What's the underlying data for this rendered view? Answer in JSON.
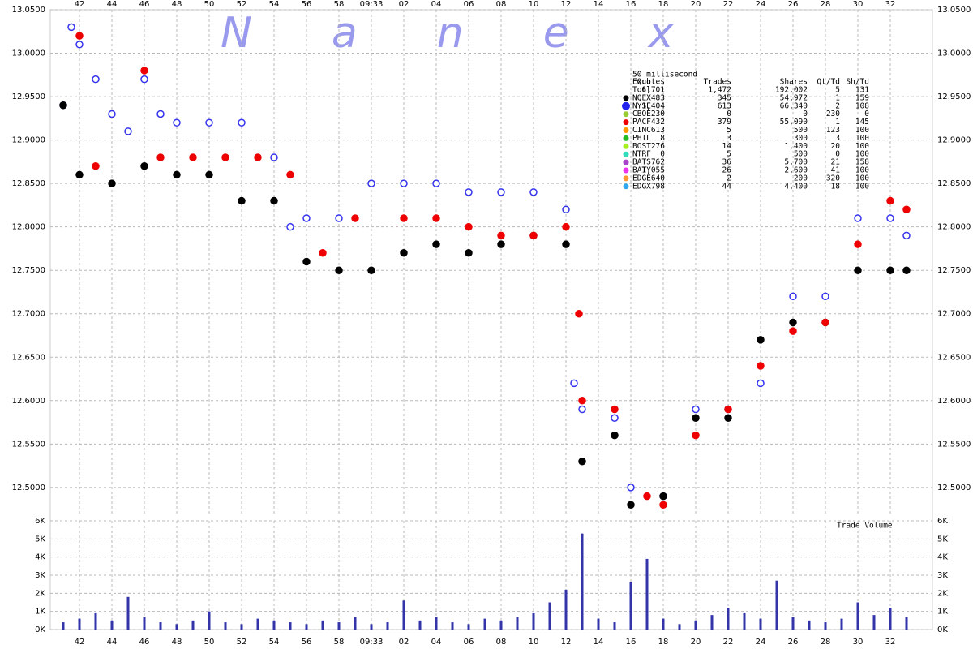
{
  "chart_data": [
    {
      "type": "scatter",
      "title": "Nanex",
      "xlim": [
        40.2,
        94.6
      ],
      "xticks": [
        42,
        44,
        46,
        48,
        50,
        52,
        54,
        56,
        58,
        {
          "value": 60,
          "label": "09:33"
        },
        {
          "value": 62,
          "label": "02"
        },
        {
          "value": 64,
          "label": "04"
        },
        {
          "value": 66,
          "label": "06"
        },
        {
          "value": 68,
          "label": "08"
        },
        {
          "value": 70,
          "label": "10"
        },
        {
          "value": 72,
          "label": "12"
        },
        {
          "value": 74,
          "label": "14"
        },
        {
          "value": 76,
          "label": "16"
        },
        {
          "value": 78,
          "label": "18"
        },
        {
          "value": 80,
          "label": "20"
        },
        {
          "value": 82,
          "label": "22"
        },
        {
          "value": 84,
          "label": "24"
        },
        {
          "value": 86,
          "label": "26"
        },
        {
          "value": 88,
          "label": "28"
        },
        {
          "value": 90,
          "label": "30"
        },
        {
          "value": 92,
          "label": "32"
        }
      ],
      "ylim": [
        12.47,
        13.05
      ],
      "yticks": [
        {
          "value": 12.5,
          "label": "12.5000"
        },
        {
          "value": 12.55,
          "label": "12.5500"
        },
        {
          "value": 12.6,
          "label": "12.6000"
        },
        {
          "value": 12.65,
          "label": "12.6500"
        },
        {
          "value": 12.7,
          "label": "12.7000"
        },
        {
          "value": 12.75,
          "label": "12.7500"
        },
        {
          "value": 12.8,
          "label": "12.8000"
        },
        {
          "value": 12.85,
          "label": "12.8500"
        },
        {
          "value": 12.9,
          "label": "12.9000"
        },
        {
          "value": 12.95,
          "label": "12.9500"
        },
        {
          "value": 13.0,
          "label": "13.0000"
        },
        {
          "value": 13.05,
          "label": "13.0500"
        }
      ],
      "grid": true,
      "series": [
        {
          "color": "#3333ee",
          "x": [
            41,
            41.5,
            42,
            43,
            44,
            45,
            46,
            47,
            48,
            50,
            52,
            54,
            55,
            56,
            58,
            60,
            62,
            64,
            66,
            68,
            70,
            72,
            72.5,
            73,
            75,
            76,
            78,
            80,
            82,
            84,
            86,
            88,
            90,
            92,
            93
          ],
          "values": [
            12.94,
            13.03,
            13.01,
            12.97,
            12.93,
            12.91,
            12.97,
            12.93,
            12.92,
            12.92,
            12.92,
            12.88,
            12.8,
            12.81,
            12.81,
            12.85,
            12.85,
            12.85,
            12.84,
            12.84,
            12.84,
            12.82,
            12.62,
            12.59,
            12.58,
            12.5,
            12.49,
            12.59,
            12.59,
            12.62,
            12.72,
            12.72,
            12.81,
            12.81,
            12.79
          ]
        },
        {
          "color": "#000000",
          "x": [
            41,
            42,
            44,
            46,
            48,
            50,
            52,
            54,
            56,
            58,
            60,
            62,
            64,
            66,
            68,
            70,
            72,
            73,
            75,
            76,
            78,
            80,
            82,
            84,
            86,
            88,
            90,
            92,
            93
          ],
          "values": [
            12.94,
            12.86,
            12.85,
            12.87,
            12.86,
            12.86,
            12.83,
            12.83,
            12.76,
            12.75,
            12.75,
            12.77,
            12.78,
            12.77,
            12.78,
            12.79,
            12.78,
            12.53,
            12.56,
            12.48,
            12.49,
            12.58,
            12.58,
            12.67,
            12.69,
            12.69,
            12.75,
            12.75,
            12.75
          ]
        },
        {
          "color": "#ee0000",
          "x": [
            42,
            43,
            46,
            47,
            49,
            51,
            53,
            55,
            57,
            59,
            62,
            64,
            66,
            68,
            70,
            72,
            72.8,
            73,
            75,
            77,
            78,
            80,
            82,
            84,
            86,
            88,
            90,
            92,
            93
          ],
          "values": [
            13.02,
            12.87,
            12.98,
            12.88,
            12.88,
            12.88,
            12.88,
            12.86,
            12.77,
            12.81,
            12.81,
            12.81,
            12.8,
            12.79,
            12.79,
            12.8,
            12.7,
            12.6,
            12.59,
            12.49,
            12.48,
            12.56,
            12.59,
            12.64,
            12.68,
            12.69,
            12.78,
            12.83,
            12.82
          ]
        }
      ],
      "legend_table": {
        "title": "50 millisecond",
        "header": [
          "Exch",
          "Quotes",
          "Trades",
          "Shares",
          "Qt/Td",
          "Sh/Td"
        ],
        "rows": [
          {
            "cells": [
              "Totl",
              "6,701",
              "1,472",
              "192,002",
              "5",
              "131"
            ]
          },
          {
            "cells": [
              "NQEX",
              "483",
              "345",
              "54,972",
              "1",
              "159"
            ],
            "color": "#000000"
          },
          {
            "cells": [
              "NYSE",
              "1,404",
              "613",
              "66,340",
              "2",
              "108"
            ],
            "color": "#2222ee"
          },
          {
            "cells": [
              "CBOE",
              "230",
              "0",
              "0",
              "230",
              "0"
            ],
            "color": "#99cc33"
          },
          {
            "cells": [
              "PACF",
              "432",
              "379",
              "55,090",
              "1",
              "145"
            ],
            "color": "#ee0000"
          },
          {
            "cells": [
              "CINC",
              "613",
              "5",
              "500",
              "123",
              "100"
            ],
            "color": "#ff9900"
          },
          {
            "cells": [
              "PHIL",
              "8",
              "3",
              "300",
              "3",
              "100"
            ],
            "color": "#22bb22"
          },
          {
            "cells": [
              "BOST",
              "276",
              "14",
              "1,400",
              "20",
              "100"
            ],
            "color": "#aaee22"
          },
          {
            "cells": [
              "NTRF",
              "0",
              "5",
              "500",
              "0",
              "100"
            ],
            "color": "#33ddbb"
          },
          {
            "cells": [
              "BATS",
              "762",
              "36",
              "5,700",
              "21",
              "158"
            ],
            "color": "#aa44cc"
          },
          {
            "cells": [
              "BATY",
              "1,055",
              "26",
              "2,600",
              "41",
              "100"
            ],
            "color": "#ee33ee"
          },
          {
            "cells": [
              "EDGE",
              "640",
              "2",
              "200",
              "320",
              "100"
            ],
            "color": "#ff9933"
          },
          {
            "cells": [
              "EDGX",
              "798",
              "44",
              "4,400",
              "18",
              "100"
            ],
            "color": "#33aaee"
          }
        ]
      }
    },
    {
      "type": "bar",
      "title": "Trade Volume",
      "color": "#3333aa",
      "xlim": [
        40.2,
        94.6
      ],
      "xticks": [
        42,
        44,
        46,
        48,
        50,
        52,
        54,
        56,
        58,
        {
          "value": 60,
          "label": "09:33"
        },
        {
          "value": 62,
          "label": "02"
        },
        {
          "value": 64,
          "label": "04"
        },
        {
          "value": 66,
          "label": "06"
        },
        {
          "value": 68,
          "label": "08"
        },
        {
          "value": 70,
          "label": "10"
        },
        {
          "value": 72,
          "label": "12"
        },
        {
          "value": 74,
          "label": "14"
        },
        {
          "value": 76,
          "label": "16"
        },
        {
          "value": 78,
          "label": "18"
        },
        {
          "value": 80,
          "label": "20"
        },
        {
          "value": 82,
          "label": "22"
        },
        {
          "value": 84,
          "label": "24"
        },
        {
          "value": 86,
          "label": "26"
        },
        {
          "value": 88,
          "label": "28"
        },
        {
          "value": 90,
          "label": "30"
        },
        {
          "value": 92,
          "label": "32"
        }
      ],
      "ylim": [
        0,
        6000
      ],
      "yticks": [
        {
          "value": 0,
          "label": "0K"
        },
        {
          "value": 1000,
          "label": "1K"
        },
        {
          "value": 2000,
          "label": "2K"
        },
        {
          "value": 3000,
          "label": "3K"
        },
        {
          "value": 4000,
          "label": "4K"
        },
        {
          "value": 5000,
          "label": "5K"
        },
        {
          "value": 6000,
          "label": "6K"
        }
      ],
      "grid": true,
      "x": [
        41,
        42,
        43,
        44,
        45,
        46,
        47,
        48,
        49,
        50,
        51,
        52,
        53,
        54,
        55,
        56,
        57,
        58,
        59,
        60,
        61,
        62,
        63,
        64,
        65,
        66,
        67,
        68,
        69,
        70,
        71,
        72,
        73,
        74,
        75,
        76,
        77,
        78,
        79,
        80,
        81,
        82,
        83,
        84,
        85,
        86,
        87,
        88,
        89,
        90,
        91,
        92,
        93
      ],
      "values": [
        400,
        600,
        900,
        500,
        1800,
        700,
        400,
        300,
        500,
        1000,
        400,
        300,
        600,
        500,
        400,
        300,
        500,
        400,
        700,
        300,
        400,
        1600,
        500,
        700,
        400,
        300,
        600,
        500,
        700,
        900,
        1500,
        2200,
        5300,
        600,
        400,
        2600,
        3900,
        600,
        300,
        500,
        800,
        1200,
        900,
        600,
        2700,
        700,
        500,
        400,
        600,
        1500,
        800,
        1200,
        700
      ]
    }
  ]
}
